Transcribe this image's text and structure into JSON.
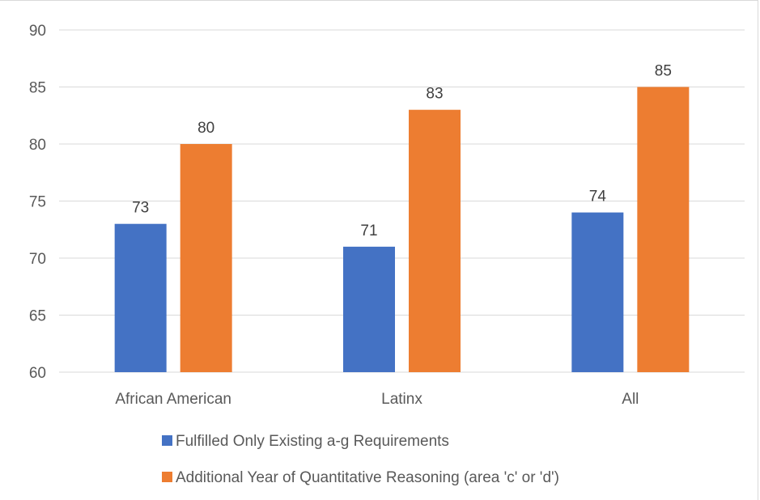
{
  "chart_data": {
    "type": "bar",
    "categories": [
      "African American",
      "Latinx",
      "All"
    ],
    "series": [
      {
        "name": "Fulfilled Only Existing a-g Requirements",
        "values": [
          73,
          71,
          74
        ],
        "color": "#4472C4"
      },
      {
        "name": "Additional Year of Quantitative Reasoning (area 'c' or 'd')",
        "values": [
          80,
          83,
          85
        ],
        "color": "#ED7D31"
      }
    ],
    "title": "",
    "xlabel": "",
    "ylabel": "",
    "ylim": [
      60,
      90
    ],
    "yticks": [
      60,
      65,
      70,
      75,
      80,
      85,
      90
    ],
    "grid": true,
    "legend_position": "bottom",
    "data_labels": true
  }
}
